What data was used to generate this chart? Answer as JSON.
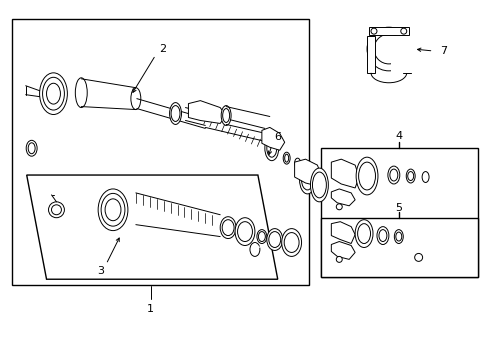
{
  "background_color": "#ffffff",
  "line_color": "#000000",
  "line_width": 1.0,
  "thin_line": 0.7,
  "fig_width": 4.89,
  "fig_height": 3.6,
  "dpi": 100
}
